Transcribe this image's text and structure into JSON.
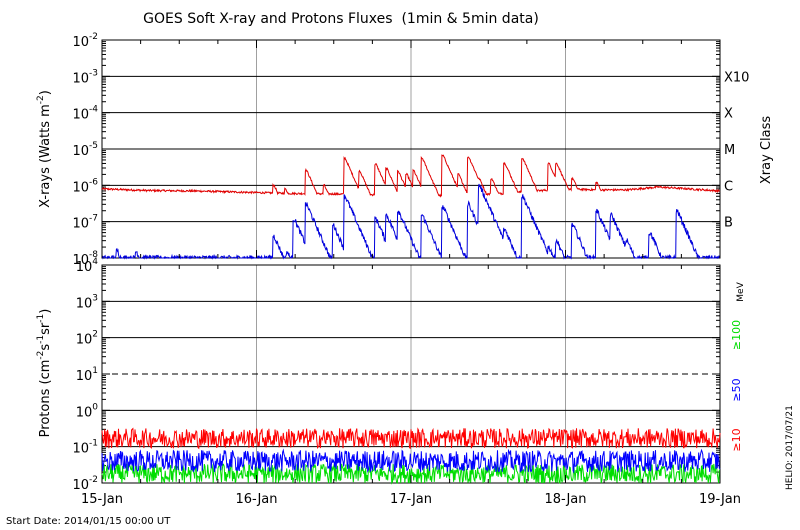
{
  "chart_data": [
    {
      "type": "line",
      "panel": "xray",
      "title": "GOES Soft X-ray and Protons Fluxes  (1min & 5min data)",
      "ylabel_prefix": "X-rays (Watts m",
      "ylabel_sup": "-2",
      "ylabel_suffix": ")",
      "yscale": "log",
      "ylim_exp": [
        -8,
        -2
      ],
      "yticks": [
        {
          "base": "10",
          "exp": "-8",
          "value": 1e-08
        },
        {
          "base": "10",
          "exp": "-7",
          "value": 1e-07
        },
        {
          "base": "10",
          "exp": "-6",
          "value": 1e-06
        },
        {
          "base": "10",
          "exp": "-5",
          "value": 1e-05
        },
        {
          "base": "10",
          "exp": "-4",
          "value": 0.0001
        },
        {
          "base": "10",
          "exp": "-3",
          "value": 0.001
        },
        {
          "base": "10",
          "exp": "-2",
          "value": 0.01
        }
      ],
      "right_axis_title": "Xray Class",
      "classes": [
        {
          "label": "B",
          "value": 1e-07
        },
        {
          "label": "C",
          "value": 1e-06
        },
        {
          "label": "M",
          "value": 1e-05
        },
        {
          "label": "X",
          "value": 0.0001
        },
        {
          "label": "X10",
          "value": 0.001
        }
      ],
      "gridlines": [
        1e-07,
        1e-06,
        1e-05,
        0.0001,
        0.001
      ],
      "x_unit": "days since 2014-01-15 00:00 UT",
      "series": [
        {
          "color": "#e00000",
          "base_points": [
            [
              0,
              8e-07
            ],
            [
              0.3,
              7.2e-07
            ],
            [
              0.6,
              7e-07
            ],
            [
              0.9,
              6.5e-07
            ],
            [
              1.2,
              6e-07
            ],
            [
              1.5,
              5.8e-07
            ],
            [
              1.8,
              5.5e-07
            ],
            [
              2.2,
              5.2e-07
            ],
            [
              2.4,
              5.5e-07
            ],
            [
              2.6,
              6e-07
            ],
            [
              2.8,
              7e-07
            ],
            [
              3.0,
              8e-07
            ],
            [
              3.2,
              7.5e-07
            ],
            [
              3.4,
              7.5e-07
            ],
            [
              3.6,
              9e-07
            ],
            [
              3.8,
              8e-07
            ],
            [
              4.0,
              7e-07
            ],
            [
              4.2,
              6.5e-07
            ],
            [
              4.5,
              6.2e-07
            ],
            [
              4.7,
              6e-07
            ],
            [
              4.85,
              5e-07
            ],
            [
              5.0,
              4.5e-07
            ]
          ],
          "flares": [
            [
              2.23,
              1e-06
            ],
            [
              2.38,
              8e-07
            ],
            [
              2.65,
              2.6e-06
            ],
            [
              2.88,
              1e-06
            ],
            [
              3.15,
              5.5e-06
            ],
            [
              3.34,
              2.5e-06
            ],
            [
              3.55,
              3.8e-06
            ],
            [
              3.69,
              2.9e-06
            ],
            [
              3.84,
              2.4e-06
            ],
            [
              3.95,
              2e-06
            ],
            [
              4.04,
              2.5e-06
            ],
            [
              4.15,
              5.5e-06
            ],
            [
              4.42,
              6.5e-06
            ],
            [
              4.62,
              2e-06
            ],
            [
              4.75,
              6e-06
            ],
            [
              4.89,
              1.5e-06
            ],
            [
              5.05,
              1.5e-06
            ],
            [
              5.22,
              4e-06
            ],
            [
              5.45,
              5.5e-06
            ],
            [
              5.79,
              4e-06
            ],
            [
              5.89,
              4e-06
            ],
            [
              6.1,
              1.5e-06
            ],
            [
              6.41,
              1.2e-06
            ]
          ]
        },
        {
          "color": "#0000dc",
          "base_points": [
            [
              0,
              1e-08
            ],
            [
              5.0,
              1e-08
            ]
          ],
          "flares": [
            [
              0.2,
              1.6e-08
            ],
            [
              0.45,
              1.5e-08
            ],
            [
              2.23,
              4e-08
            ],
            [
              2.4,
              1.5e-08
            ],
            [
              2.49,
              1.2e-07
            ],
            [
              2.65,
              3e-07
            ],
            [
              2.82,
              4e-08
            ],
            [
              3.0,
              8e-08
            ],
            [
              3.15,
              5e-07
            ],
            [
              3.34,
              3e-08
            ],
            [
              3.55,
              1.2e-07
            ],
            [
              3.69,
              1.5e-07
            ],
            [
              3.84,
              2e-07
            ],
            [
              4.04,
              2e-08
            ],
            [
              4.15,
              1.5e-07
            ],
            [
              4.42,
              2.5e-07
            ],
            [
              4.62,
              2e-08
            ],
            [
              4.75,
              3e-07
            ],
            [
              4.89,
              1e-06
            ],
            [
              5.05,
              3e-08
            ],
            [
              5.22,
              6e-08
            ],
            [
              5.45,
              5e-07
            ],
            [
              5.79,
              2e-08
            ],
            [
              5.89,
              3e-08
            ],
            [
              6.1,
              8e-08
            ],
            [
              6.41,
              2e-07
            ],
            [
              6.6,
              1.5e-07
            ],
            [
              6.8,
              3e-08
            ],
            [
              7.1,
              5e-08
            ],
            [
              7.45,
              2e-07
            ]
          ]
        }
      ]
    },
    {
      "type": "line",
      "panel": "protons",
      "ylabel_prefix": "Protons (cm",
      "ylabel_sup1": "-2",
      "ylabel_mid1": "s",
      "ylabel_sup2": "-1",
      "ylabel_mid2": "sr",
      "ylabel_sup3": "-1",
      "ylabel_suffix": ")",
      "yscale": "log",
      "ylim_exp": [
        -2,
        4
      ],
      "yticks": [
        {
          "base": "10",
          "exp": "-2",
          "value": 0.01
        },
        {
          "base": "10",
          "exp": "-1",
          "value": 0.1
        },
        {
          "base": "10",
          "exp": "0",
          "value": 1
        },
        {
          "base": "10",
          "exp": "1",
          "value": 10
        },
        {
          "base": "10",
          "exp": "2",
          "value": 100
        },
        {
          "base": "10",
          "exp": "3",
          "value": 1000
        },
        {
          "base": "10",
          "exp": "4",
          "value": 10000
        }
      ],
      "gridlines": [
        0.1,
        1,
        100,
        1000
      ],
      "dashed_line": 10,
      "x_unit": "days since 2014-01-15 00:00 UT",
      "series": [
        {
          "name": "≥10",
          "color": "#ff0000",
          "level": 0.17
        },
        {
          "name": "≥50",
          "color": "#0000ff",
          "level": 0.04
        },
        {
          "name": "≥100",
          "color": "#00dd00",
          "level": 0.018
        }
      ],
      "unit_label": "MeV"
    }
  ],
  "x_axis": {
    "ticks": [
      "15-Jan",
      "16-Jan",
      "17-Jan",
      "18-Jan",
      "19-Jan"
    ],
    "days": 4
  },
  "footer": {
    "start_date": "Start Date: 2014/01/15 00:00 UT",
    "credit": "HELIO: 2017/07/21"
  }
}
